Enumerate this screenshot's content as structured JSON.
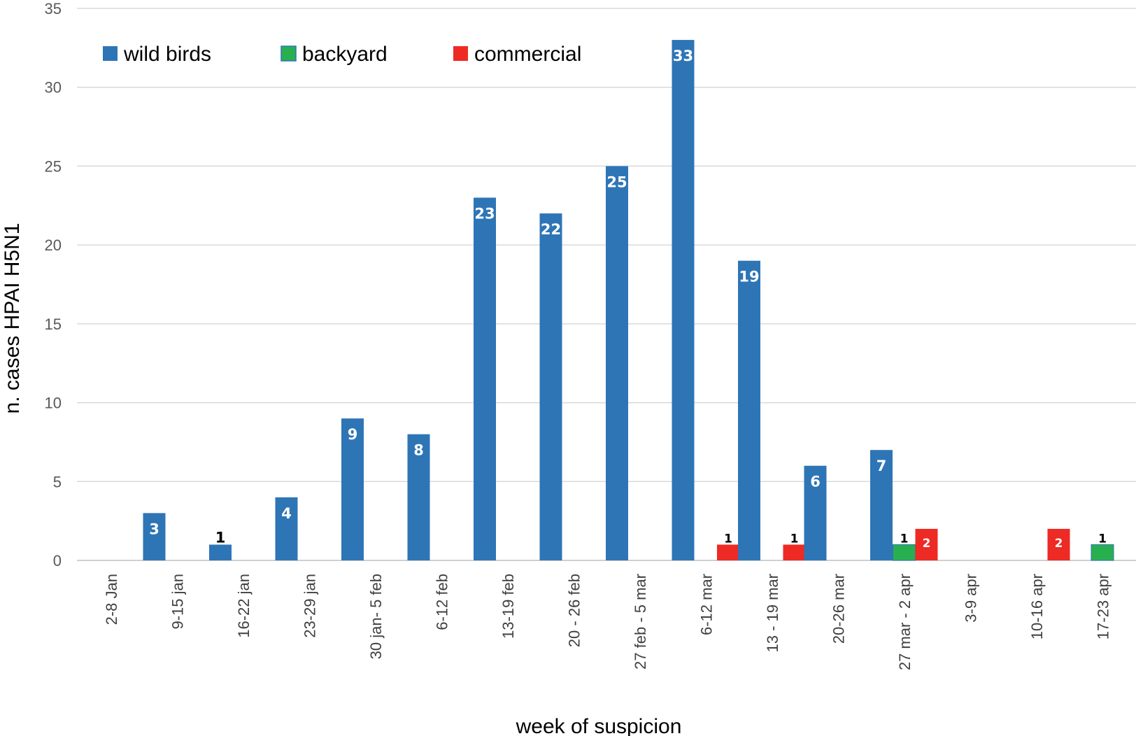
{
  "chart_data": {
    "type": "bar",
    "title": "",
    "xlabel": "week of suspicion",
    "ylabel": "n. cases  HPAI H5N1",
    "ylim": [
      0,
      35
    ],
    "yticks": [
      "0",
      "5",
      "10",
      "15",
      "20",
      "25",
      "30",
      "35"
    ],
    "grid": true,
    "legend_position": "top-left",
    "categories": [
      "2-8 Jan",
      "9-15 jan",
      "16-22 jan",
      "23-29 jan",
      "30 jan- 5 feb",
      "6-12 feb",
      "13-19 feb",
      "20 - 26 feb",
      "27 feb - 5 mar",
      "6-12 mar",
      "13 - 19 mar",
      "20-26 mar",
      "27 mar - 2 apr",
      "3-9 apr",
      "10-16 apr",
      "17-23 apr"
    ],
    "series": [
      {
        "name": "wild birds",
        "color": "#2E75B6",
        "values": [
          0,
          3,
          1,
          4,
          9,
          8,
          23,
          22,
          25,
          33,
          19,
          6,
          7,
          0,
          0,
          0
        ],
        "labels": [
          "",
          "3",
          "1",
          "4",
          "9",
          "8",
          "23",
          "22",
          "25",
          "33",
          "19",
          "6",
          "7",
          "",
          "",
          ""
        ]
      },
      {
        "name": "backyard",
        "color": "#28B050",
        "values": [
          0,
          0,
          0,
          0,
          0,
          0,
          0,
          0,
          0,
          0,
          0,
          0,
          1,
          0,
          0,
          1
        ],
        "labels": [
          "",
          "",
          "",
          "",
          "",
          "",
          "",
          "",
          "",
          "",
          "",
          "",
          "1",
          "",
          "",
          "1"
        ]
      },
      {
        "name": "commercial",
        "color": "#EE2A24",
        "values": [
          0,
          0,
          0,
          0,
          0,
          0,
          0,
          0,
          0,
          1,
          1,
          0,
          2,
          0,
          2,
          0
        ],
        "labels": [
          "",
          "",
          "",
          "",
          "",
          "",
          "",
          "",
          "",
          "1",
          "1",
          "",
          "2",
          "",
          "2",
          ""
        ]
      }
    ]
  }
}
